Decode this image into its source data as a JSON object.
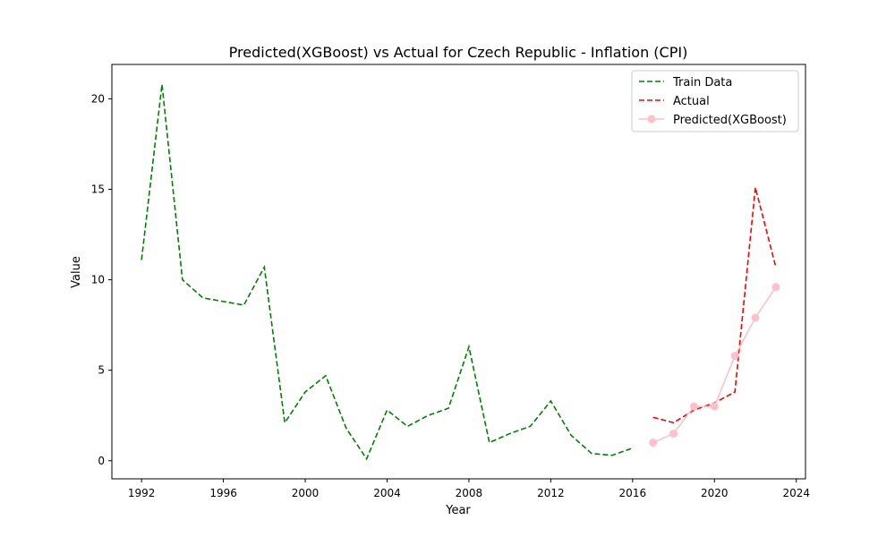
{
  "chart_data": {
    "type": "line",
    "title": "Predicted(XGBoost) vs Actual for Czech Republic - Inflation (CPI)",
    "xlabel": "Year",
    "ylabel": "Value",
    "xlim": [
      1990.55,
      2024.45
    ],
    "ylim": [
      -1.0,
      21.9
    ],
    "x_ticks": [
      1992,
      1996,
      2000,
      2004,
      2008,
      2012,
      2016,
      2020,
      2024
    ],
    "y_ticks": [
      0,
      5,
      10,
      15,
      20
    ],
    "legend_position": "top-right",
    "series": [
      {
        "name": "Train Data",
        "color": "#008000",
        "style": "dashed",
        "marker": false,
        "x": [
          1992,
          1993,
          1994,
          1995,
          1996,
          1997,
          1998,
          1999,
          2000,
          2001,
          2002,
          2003,
          2004,
          2005,
          2006,
          2007,
          2008,
          2009,
          2010,
          2011,
          2012,
          2013,
          2014,
          2015,
          2016
        ],
        "y": [
          11.1,
          20.8,
          10.0,
          9.0,
          8.8,
          8.6,
          10.7,
          2.1,
          3.8,
          4.7,
          1.8,
          0.1,
          2.8,
          1.9,
          2.5,
          2.9,
          6.3,
          1.0,
          1.5,
          1.9,
          3.3,
          1.4,
          0.4,
          0.3,
          0.7
        ]
      },
      {
        "name": "Actual",
        "color": "#ff0000",
        "style": "dashed",
        "marker": false,
        "x": [
          2017,
          2018,
          2019,
          2020,
          2021,
          2022,
          2023
        ],
        "y": [
          2.4,
          2.1,
          2.8,
          3.2,
          3.8,
          15.1,
          10.7
        ]
      },
      {
        "name": "Predicted(XGBoost)",
        "color": "#ffc0cb",
        "style": "solid",
        "marker": true,
        "x": [
          2017,
          2018,
          2019,
          2020,
          2021,
          2022,
          2023
        ],
        "y": [
          1.0,
          1.5,
          3.0,
          3.0,
          5.8,
          7.9,
          9.6
        ]
      }
    ]
  }
}
